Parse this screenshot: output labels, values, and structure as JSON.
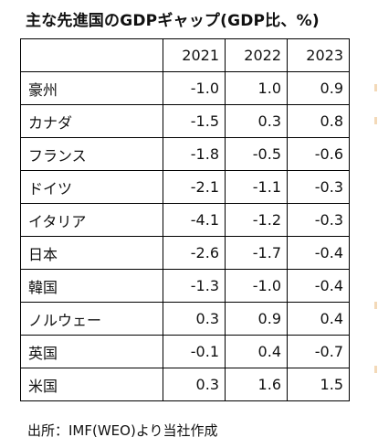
{
  "title": "主な先進国のGDPギャップ(GDP比、%)",
  "table": {
    "corner": "",
    "years": [
      "2021",
      "2022",
      "2023"
    ],
    "rows": [
      {
        "country": "豪州",
        "values": [
          "-1.0",
          "1.0",
          "0.9"
        ]
      },
      {
        "country": "カナダ",
        "values": [
          "-1.5",
          "0.3",
          "0.8"
        ]
      },
      {
        "country": "フランス",
        "values": [
          "-1.8",
          "-0.5",
          "-0.6"
        ]
      },
      {
        "country": "ドイツ",
        "values": [
          "-2.1",
          "-1.1",
          "-0.3"
        ]
      },
      {
        "country": "イタリア",
        "values": [
          "-4.1",
          "-1.2",
          "-0.3"
        ]
      },
      {
        "country": "日本",
        "values": [
          "-2.6",
          "-1.7",
          "-0.4"
        ]
      },
      {
        "country": "韓国",
        "values": [
          "-1.3",
          "-1.0",
          "-0.4"
        ]
      },
      {
        "country": "ノルウェー",
        "values": [
          "0.3",
          "0.9",
          "0.4"
        ]
      },
      {
        "country": "英国",
        "values": [
          "-0.1",
          "0.4",
          "-0.7"
        ]
      },
      {
        "country": "米国",
        "values": [
          "0.3",
          "1.6",
          "1.5"
        ]
      }
    ]
  },
  "source": "出所：IMF(WEO)より当社作成"
}
